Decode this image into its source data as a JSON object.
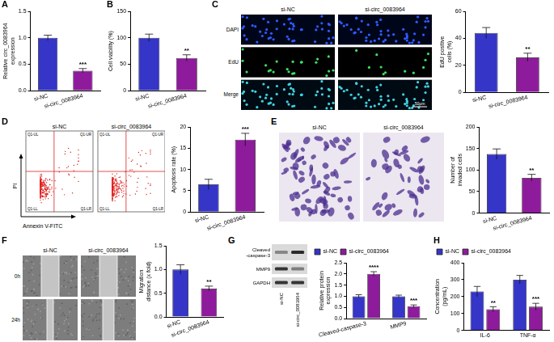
{
  "chart_data": [
    {
      "panel": "A",
      "type": "bar",
      "ylabel": "Relative circ_0083964 expression",
      "categories": [
        "si-NC",
        "si-circ_0083964"
      ],
      "values": [
        1.0,
        0.38
      ],
      "errors": [
        0.05,
        0.04
      ],
      "significance": [
        null,
        "***"
      ],
      "colors": [
        "#3535c8",
        "#8e1b9b"
      ],
      "ylim": [
        0,
        1.5
      ],
      "yticks": [
        {
          "value": 0,
          "label": "0.0"
        },
        0.5,
        {
          "value": 1,
          "label": "1.0"
        },
        1.5
      ],
      "grid": false
    },
    {
      "panel": "B",
      "type": "bar",
      "ylabel": "Cell viability (%)",
      "categories": [
        "si-NC",
        "si-circ_0083964"
      ],
      "values": [
        100,
        62
      ],
      "errors": [
        7,
        6
      ],
      "significance": [
        null,
        "**"
      ],
      "colors": [
        "#3535c8",
        "#8e1b9b"
      ],
      "ylim": [
        0,
        150
      ],
      "yticks": [
        0,
        50,
        100,
        150
      ],
      "grid": false
    },
    {
      "panel": "C",
      "type": "bar",
      "ylabel": "EdU positive cells (%)",
      "categories": [
        "si-NC",
        "si-circ_0083964"
      ],
      "values": [
        44,
        26
      ],
      "errors": [
        4,
        3
      ],
      "significance": [
        null,
        "**"
      ],
      "colors": [
        "#3535c8",
        "#8e1b9b"
      ],
      "ylim": [
        0,
        60
      ],
      "yticks": [
        0,
        20,
        40,
        60
      ],
      "grid": false
    },
    {
      "panel": "D",
      "type": "bar",
      "ylabel": "Apoptosis rate (%)",
      "categories": [
        "si-NC",
        "si-circ_0083964"
      ],
      "values": [
        6.5,
        17
      ],
      "errors": [
        1.2,
        1.5
      ],
      "significance": [
        null,
        "***"
      ],
      "colors": [
        "#3535c8",
        "#8e1b9b"
      ],
      "ylim": [
        0,
        20
      ],
      "yticks": [
        0,
        5,
        10,
        15,
        20
      ],
      "grid": false
    },
    {
      "panel": "E",
      "type": "bar",
      "ylabel": "Number of invaded cells",
      "categories": [
        "si-NC",
        "si-circ_0083964"
      ],
      "values": [
        137,
        82
      ],
      "errors": [
        12,
        8
      ],
      "significance": [
        null,
        "**"
      ],
      "colors": [
        "#3535c8",
        "#8e1b9b"
      ],
      "ylim": [
        0,
        200
      ],
      "yticks": [
        0,
        50,
        100,
        150,
        200
      ],
      "grid": false
    },
    {
      "panel": "F",
      "type": "bar",
      "ylabel": "Migration distance (x fold)",
      "categories": [
        "si-NC",
        "si-circ_0083964"
      ],
      "values": [
        1.0,
        0.6
      ],
      "errors": [
        0.1,
        0.05
      ],
      "significance": [
        null,
        "**"
      ],
      "colors": [
        "#3535c8",
        "#8e1b9b"
      ],
      "ylim": [
        0,
        1.5
      ],
      "yticks": [
        {
          "value": 0,
          "label": "0.0"
        },
        0.5,
        {
          "value": 1,
          "label": "1.0"
        },
        1.5
      ],
      "grid": false
    },
    {
      "panel": "G",
      "type": "bar",
      "ylabel": "Relative protein expression",
      "categories": [
        "Cleaved-caspase-3",
        "MMP9"
      ],
      "series": [
        {
          "name": "si-NC",
          "color": "#3535c8",
          "values": [
            1.0,
            1.0
          ],
          "errors": [
            0.07,
            0.05
          ],
          "significance": [
            null,
            null
          ]
        },
        {
          "name": "si-circ_0083964",
          "color": "#8e1b9b",
          "values": [
            2.0,
            0.55
          ],
          "errors": [
            0.1,
            0.06
          ],
          "significance": [
            "****",
            "***"
          ]
        }
      ],
      "ylim": [
        0,
        2.5
      ],
      "yticks": [
        {
          "value": 0,
          "label": "0.0"
        },
        0.5,
        {
          "value": 1,
          "label": "1.0"
        },
        1.5,
        {
          "value": 2,
          "label": "2.0"
        },
        2.5
      ],
      "grid": false,
      "legend": "upper left"
    },
    {
      "panel": "H",
      "type": "bar",
      "ylabel": "Concentration (pg/mL)",
      "categories": [
        "IL-6",
        "TNF-α"
      ],
      "series": [
        {
          "name": "si-NC",
          "color": "#3535c8",
          "values": [
            230,
            300
          ],
          "errors": [
            30,
            25
          ],
          "significance": [
            null,
            null
          ]
        },
        {
          "name": "si-circ_0083964",
          "color": "#8e1b9b",
          "values": [
            125,
            140
          ],
          "errors": [
            15,
            20
          ],
          "significance": [
            "**",
            "***"
          ]
        }
      ],
      "ylim": [
        0,
        400
      ],
      "yticks": [
        0,
        100,
        200,
        300,
        400
      ],
      "grid": false,
      "legend": "upper left"
    }
  ],
  "images": [
    {
      "columns": [
        "si-NC",
        "si-circ_0083964"
      ],
      "rows": [
        "DAPI",
        "EdU",
        "Merge"
      ],
      "scale_bar": "50μm"
    },
    {
      "columns": [
        "si-NC",
        "si-circ_0083964"
      ],
      "xlabel": "Annexin V-FITC",
      "ylabel": "PI",
      "quadrants": [
        "Q1-UL",
        "Q1-UR",
        "Q1-LL",
        "Q1-LR"
      ]
    },
    {
      "columns": [
        "si-NC",
        "si-circ_0083964"
      ]
    },
    {
      "columns": [
        "si-NC",
        "si-circ_0083964"
      ],
      "rows": [
        "0h",
        "24h"
      ]
    },
    {
      "rows": [
        [
          "Cleaved",
          "-caspase-3"
        ],
        [
          "MMP9"
        ],
        [
          "GAPDH"
        ]
      ],
      "lanes": [
        "si-NC",
        "si-circ_0083964"
      ]
    }
  ]
}
